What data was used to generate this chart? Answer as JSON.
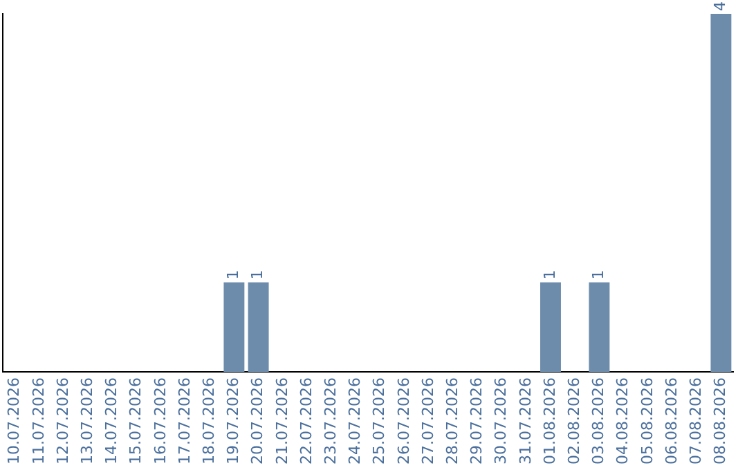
{
  "chart_data": {
    "type": "bar",
    "categories": [
      "10.07.2026",
      "11.07.2026",
      "12.07.2026",
      "13.07.2026",
      "14.07.2026",
      "15.07.2026",
      "16.07.2026",
      "17.07.2026",
      "18.07.2026",
      "19.07.2026",
      "20.07.2026",
      "21.07.2026",
      "22.07.2026",
      "23.07.2026",
      "24.07.2026",
      "25.07.2026",
      "26.07.2026",
      "27.07.2026",
      "28.07.2026",
      "29.07.2026",
      "30.07.2026",
      "31.07.2026",
      "01.08.2026",
      "02.08.2026",
      "03.08.2026",
      "04.08.2026",
      "05.08.2026",
      "06.08.2026",
      "07.08.2026",
      "08.08.2026"
    ],
    "values": [
      0,
      0,
      0,
      0,
      0,
      0,
      0,
      0,
      0,
      1,
      1,
      0,
      0,
      0,
      0,
      0,
      0,
      0,
      0,
      0,
      0,
      0,
      1,
      0,
      1,
      0,
      0,
      0,
      0,
      4
    ],
    "value_labels": [
      null,
      null,
      null,
      null,
      null,
      null,
      null,
      null,
      null,
      "1",
      "1",
      null,
      null,
      null,
      null,
      null,
      null,
      null,
      null,
      null,
      null,
      null,
      "1",
      null,
      "1",
      null,
      null,
      null,
      null,
      "4"
    ],
    "color": "#6d8cab",
    "grid": false,
    "legend": false,
    "tick_labels": "x"
  }
}
